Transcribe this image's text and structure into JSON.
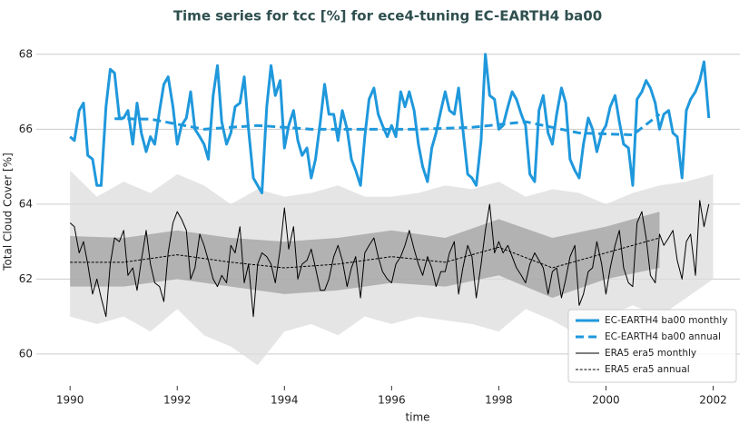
{
  "chart_data": {
    "type": "line",
    "title": "Time series for tcc [%] for ece4-tuning EC-EARTH4 ba00",
    "xlabel": "time",
    "ylabel": "Total Cloud Cover [%]",
    "xlim": [
      1989.37,
      2002.5
    ],
    "ylim": [
      59.15,
      68.48
    ],
    "xticks": [
      1990,
      1992,
      1994,
      1996,
      1998,
      2000,
      2002
    ],
    "yticks": [
      60,
      62,
      64,
      66,
      68
    ],
    "grid": true,
    "legend": "lower right",
    "x": [
      1990.0,
      1990.08,
      1990.17,
      1990.25,
      1990.33,
      1990.42,
      1990.5,
      1990.58,
      1990.67,
      1990.75,
      1990.83,
      1990.92,
      1991.0,
      1991.08,
      1991.17,
      1991.25,
      1991.33,
      1991.42,
      1991.5,
      1991.58,
      1991.67,
      1991.75,
      1991.83,
      1991.92,
      1992.0,
      1992.08,
      1992.17,
      1992.25,
      1992.33,
      1992.42,
      1992.5,
      1992.58,
      1992.67,
      1992.75,
      1992.83,
      1992.92,
      1993.0,
      1993.08,
      1993.17,
      1993.25,
      1993.33,
      1993.42,
      1993.5,
      1993.58,
      1993.67,
      1993.75,
      1993.83,
      1993.92,
      1994.0,
      1994.08,
      1994.17,
      1994.25,
      1994.33,
      1994.42,
      1994.5,
      1994.58,
      1994.67,
      1994.75,
      1994.83,
      1994.92,
      1995.0,
      1995.08,
      1995.17,
      1995.25,
      1995.33,
      1995.42,
      1995.5,
      1995.58,
      1995.67,
      1995.75,
      1995.83,
      1995.92,
      1996.0,
      1996.08,
      1996.17,
      1996.25,
      1996.33,
      1996.42,
      1996.5,
      1996.58,
      1996.67,
      1996.75,
      1996.83,
      1996.92,
      1997.0,
      1997.08,
      1997.17,
      1997.25,
      1997.33,
      1997.42,
      1997.5,
      1997.58,
      1997.67,
      1997.75,
      1997.83,
      1997.92,
      1998.0,
      1998.08,
      1998.17,
      1998.25,
      1998.33,
      1998.42,
      1998.5,
      1998.58,
      1998.67,
      1998.75,
      1998.83,
      1998.92,
      1999.0,
      1999.08,
      1999.17,
      1999.25,
      1999.33,
      1999.42,
      1999.5,
      1999.58,
      1999.67,
      1999.75,
      1999.83,
      1999.92,
      2000.0,
      2000.08,
      2000.17,
      2000.25,
      2000.33,
      2000.42,
      2000.5,
      2000.58,
      2000.67,
      2000.75,
      2000.83,
      2000.92,
      2001.0,
      2001.08,
      2001.17,
      2001.25,
      2001.33,
      2001.42,
      2001.5,
      2001.58,
      2001.67,
      2001.75,
      2001.83,
      2001.92
    ],
    "bands": [
      {
        "color": "#dcdcdc",
        "x": [
          1990,
          1990.5,
          1991,
          1991.5,
          1992,
          1992.5,
          1993,
          1993.5,
          1994,
          1994.5,
          1995,
          1995.5,
          1996,
          1996.5,
          1997,
          1997.5,
          1998,
          1998.5,
          1999,
          1999.5,
          2000,
          2000.5,
          2001,
          2001.5,
          2002
        ],
        "lower": [
          61.0,
          60.8,
          61.0,
          60.6,
          61.2,
          60.5,
          60.2,
          59.7,
          60.6,
          60.8,
          60.5,
          61.0,
          60.8,
          61.0,
          60.9,
          60.8,
          60.6,
          61.2,
          60.9,
          60.5,
          61.0,
          61.3,
          61.0,
          61.5,
          62.0
        ],
        "upper": [
          64.9,
          64.2,
          64.6,
          64.3,
          64.8,
          64.5,
          64.0,
          64.4,
          64.2,
          64.3,
          64.5,
          64.2,
          64.2,
          64.3,
          64.5,
          64.4,
          64.6,
          64.2,
          64.4,
          64.3,
          64.0,
          64.3,
          64.5,
          64.6,
          64.8
        ]
      },
      {
        "color": "#a0a0a0",
        "x": [
          1990,
          1991,
          1992,
          1993,
          1994,
          1995,
          1996,
          1997,
          1998,
          1999,
          2000,
          2001
        ],
        "lower": [
          61.8,
          61.8,
          62.0,
          61.8,
          61.6,
          61.7,
          61.9,
          61.8,
          62.1,
          61.5,
          62.0,
          62.3
        ],
        "upper": [
          63.15,
          63.1,
          63.3,
          63.1,
          63.0,
          63.1,
          63.3,
          63.1,
          63.6,
          63.1,
          63.4,
          63.8
        ]
      }
    ],
    "series": [
      {
        "name": "EC-EARTH4 ba00 monthly",
        "color": "#1f98dc",
        "style": "solid",
        "width": 3,
        "values": [
          65.8,
          65.7,
          66.5,
          66.7,
          65.3,
          65.2,
          64.5,
          64.5,
          66.6,
          67.6,
          67.5,
          66.3,
          66.3,
          66.5,
          65.6,
          66.7,
          65.9,
          65.4,
          65.8,
          65.6,
          66.5,
          67.2,
          67.4,
          66.6,
          65.6,
          66.1,
          66.3,
          67.0,
          66.0,
          65.8,
          65.6,
          65.2,
          66.9,
          67.7,
          66.2,
          65.6,
          65.9,
          66.6,
          66.7,
          67.4,
          66.0,
          64.7,
          64.5,
          64.3,
          66.6,
          67.7,
          66.9,
          67.3,
          65.5,
          66.1,
          66.5,
          65.7,
          65.3,
          65.5,
          64.7,
          65.2,
          66.2,
          67.2,
          66.4,
          66.4,
          65.7,
          66.5,
          66.0,
          65.2,
          64.9,
          64.5,
          65.8,
          66.8,
          67.1,
          66.4,
          66.1,
          65.8,
          66.1,
          65.8,
          67.0,
          66.6,
          67.0,
          66.5,
          65.6,
          65.0,
          64.6,
          65.5,
          65.9,
          66.5,
          67.0,
          66.5,
          66.4,
          67.1,
          66.0,
          64.8,
          64.7,
          64.5,
          65.7,
          68.0,
          66.9,
          66.8,
          66.0,
          66.1,
          66.6,
          67.0,
          66.8,
          66.4,
          66.1,
          64.8,
          64.6,
          66.5,
          66.9,
          65.9,
          65.6,
          66.4,
          67.1,
          66.7,
          65.2,
          64.9,
          64.7,
          65.6,
          66.3,
          66.0,
          65.4,
          65.9,
          66.1,
          66.6,
          66.9,
          66.2,
          65.6,
          65.5,
          64.5,
          66.8,
          67.0,
          67.3,
          67.1,
          66.7,
          66.0,
          66.4,
          66.5,
          65.9,
          65.8,
          64.7,
          66.5,
          66.8,
          67.0,
          67.3,
          67.8,
          66.3
        ]
      },
      {
        "name": "EC-EARTH4 ba00 annual",
        "color": "#1f98dc",
        "style": "dashed",
        "width": 3,
        "x": [
          1990.83,
          1991.5,
          1992.5,
          1993.5,
          1994.5,
          1995.5,
          1996.5,
          1997.5,
          1998.5,
          1999.5,
          2000.5,
          2001.0
        ],
        "values": [
          66.28,
          66.27,
          66.0,
          66.1,
          66.0,
          66.0,
          66.0,
          66.05,
          66.2,
          65.9,
          65.85,
          66.4
        ]
      },
      {
        "name": "ERA5 era5 monthly",
        "color": "#000000",
        "style": "solid",
        "width": 1,
        "values": [
          63.5,
          63.4,
          62.7,
          63.0,
          62.4,
          61.6,
          62.0,
          61.5,
          61.0,
          62.4,
          63.1,
          63.0,
          63.3,
          62.1,
          62.3,
          61.7,
          62.5,
          63.3,
          62.4,
          61.9,
          61.8,
          61.4,
          62.7,
          63.5,
          63.8,
          63.6,
          63.3,
          62.0,
          62.3,
          63.2,
          62.9,
          62.5,
          62.0,
          61.8,
          62.1,
          61.9,
          62.9,
          62.7,
          63.4,
          61.9,
          62.4,
          61.0,
          62.4,
          62.7,
          62.6,
          62.4,
          61.9,
          62.8,
          63.9,
          62.8,
          63.4,
          62.0,
          62.4,
          62.5,
          62.8,
          62.3,
          61.7,
          61.7,
          62.0,
          62.6,
          62.9,
          62.5,
          61.8,
          62.3,
          62.6,
          61.5,
          62.7,
          62.9,
          63.1,
          62.6,
          62.2,
          62.0,
          61.9,
          62.4,
          62.6,
          62.9,
          63.3,
          62.8,
          62.4,
          62.1,
          62.6,
          62.3,
          61.8,
          62.2,
          62.2,
          62.7,
          63.0,
          61.6,
          62.3,
          62.9,
          62.6,
          61.5,
          62.4,
          63.3,
          64.0,
          62.7,
          63.0,
          62.7,
          62.9,
          62.6,
          62.3,
          62.1,
          61.9,
          62.4,
          62.7,
          62.5,
          62.3,
          61.6,
          62.2,
          62.3,
          61.5,
          62.0,
          62.6,
          62.9,
          61.3,
          61.6,
          62.2,
          62.3,
          63.0,
          62.4,
          61.6,
          62.3,
          62.9,
          63.3,
          62.3,
          61.9,
          61.8,
          63.5,
          63.8,
          63.1,
          62.1,
          61.9,
          63.2,
          62.9,
          63.1,
          63.3,
          62.5,
          62.0,
          63.0,
          63.2,
          62.1,
          64.1,
          63.4,
          64.0
        ]
      },
      {
        "name": "ERA5 era5 annual",
        "color": "#000000",
        "style": "dashed",
        "width": 1,
        "x": [
          1990,
          1991,
          1992,
          1993,
          1994,
          1995,
          1996,
          1997,
          1998,
          1999,
          2000,
          2001
        ],
        "values": [
          62.45,
          62.45,
          62.65,
          62.45,
          62.3,
          62.4,
          62.6,
          62.45,
          62.85,
          62.3,
          62.7,
          63.1
        ]
      }
    ]
  }
}
